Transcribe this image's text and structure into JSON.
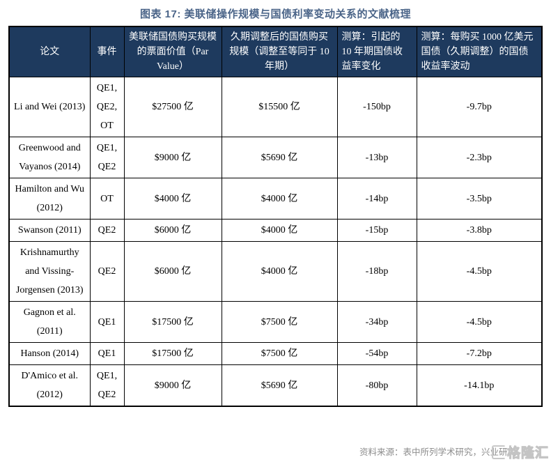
{
  "title": "图表 17: 美联储操作规模与国债利率变动关系的文献梳理",
  "table": {
    "headers": [
      "论文",
      "事件",
      "美联储国债购买规模的票面价值（Par Value）",
      "久期调整后的国债购买规模（调整至等同于 10 年期）",
      "测算：引起的 10 年期国债收益率变化",
      "测算：每购买 1000 亿美元国债（久期调整）的国债收益率波动"
    ],
    "col_keys": [
      "paper",
      "event",
      "par-value",
      "duration-adjusted",
      "yield-change",
      "yield-change-per-100b"
    ],
    "rows": [
      [
        "Li and Wei (2013)",
        "QE1, QE2, OT",
        "$27500 亿",
        "$15500 亿",
        "-150bp",
        "-9.7bp"
      ],
      [
        "Greenwood and Vayanos (2014)",
        "QE1, QE2",
        "$9000 亿",
        "$5690 亿",
        "-13bp",
        "-2.3bp"
      ],
      [
        "Hamilton and Wu (2012)",
        "OT",
        "$4000 亿",
        "$4000 亿",
        "-14bp",
        "-3.5bp"
      ],
      [
        "Swanson (2011)",
        "QE2",
        "$6000 亿",
        "$4000 亿",
        "-15bp",
        "-3.8bp"
      ],
      [
        "Krishnamurthy and Vissing-Jorgensen (2013)",
        "QE2",
        "$6000 亿",
        "$4000 亿",
        "-18bp",
        "-4.5bp"
      ],
      [
        "Gagnon et al. (2011)",
        "QE1",
        "$17500 亿",
        "$7500 亿",
        "-34bp",
        "-4.5bp"
      ],
      [
        "Hanson (2014)",
        "QE1",
        "$17500 亿",
        "$7500 亿",
        "-54bp",
        "-7.2bp"
      ],
      [
        "D'Amico et al. (2012)",
        "QE1, QE2",
        "$9000 亿",
        "$5690 亿",
        "-80bp",
        "-14.1bp"
      ]
    ]
  },
  "footer": {
    "source": "资料来源：表中所列学术研究，兴业研究"
  },
  "watermark": {
    "brand": "格隆汇"
  },
  "colors": {
    "header_bg": "#1e3a5e",
    "header_text": "#ffffff",
    "title_text": "#4a6488",
    "border": "#000000",
    "source_text": "#8c8c8c",
    "watermark": "#c8c8c8"
  }
}
